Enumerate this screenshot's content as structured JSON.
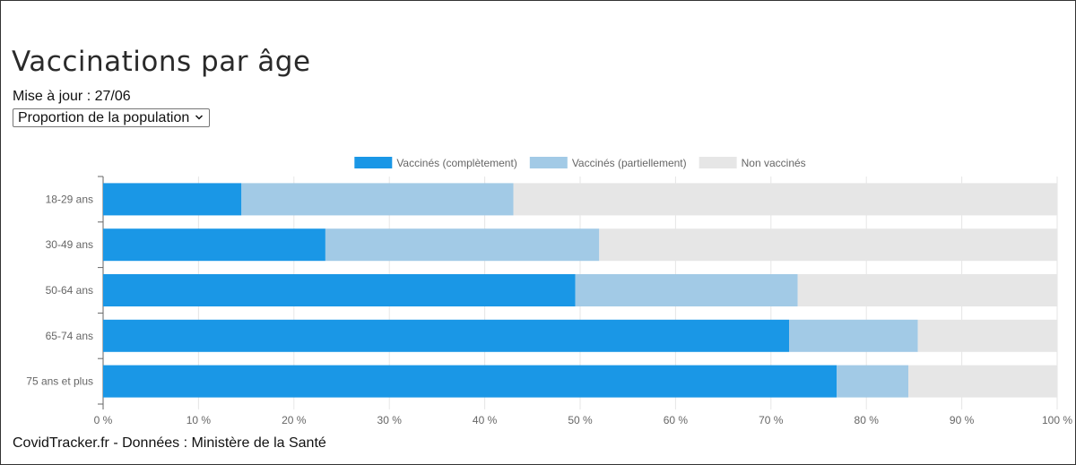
{
  "title": "Vaccinations par âge",
  "updated": "Mise à jour : 27/06",
  "selector": {
    "value": "Proportion de la population"
  },
  "source": "CovidTracker.fr - Données : Ministère de la Santé",
  "colors": {
    "complet": "#1a97e6",
    "partiel": "#a2cae6",
    "non": "#e6e6e6",
    "grid": "#e6e6e6",
    "axis": "#666666"
  },
  "chart_data": {
    "type": "bar",
    "orientation": "horizontal",
    "stacked": true,
    "categories": [
      "18-29 ans",
      "30-49 ans",
      "50-64 ans",
      "65-74 ans",
      "75 ans et plus"
    ],
    "series": [
      {
        "name": "Vaccinés (complètement)",
        "values": [
          14.5,
          23.3,
          49.5,
          71.9,
          76.9
        ]
      },
      {
        "name": "Vaccinés (partiellement)",
        "values": [
          28.5,
          28.7,
          23.3,
          13.5,
          7.5
        ]
      },
      {
        "name": "Non vaccinés",
        "values": [
          57.0,
          48.0,
          27.2,
          14.6,
          15.6
        ]
      }
    ],
    "xlim": [
      0,
      100
    ],
    "xticks": [
      "0 %",
      "10 %",
      "20 %",
      "30 %",
      "40 %",
      "50 %",
      "60 %",
      "70 %",
      "80 %",
      "90 %",
      "100 %"
    ],
    "legend_position": "top",
    "grid": true
  }
}
